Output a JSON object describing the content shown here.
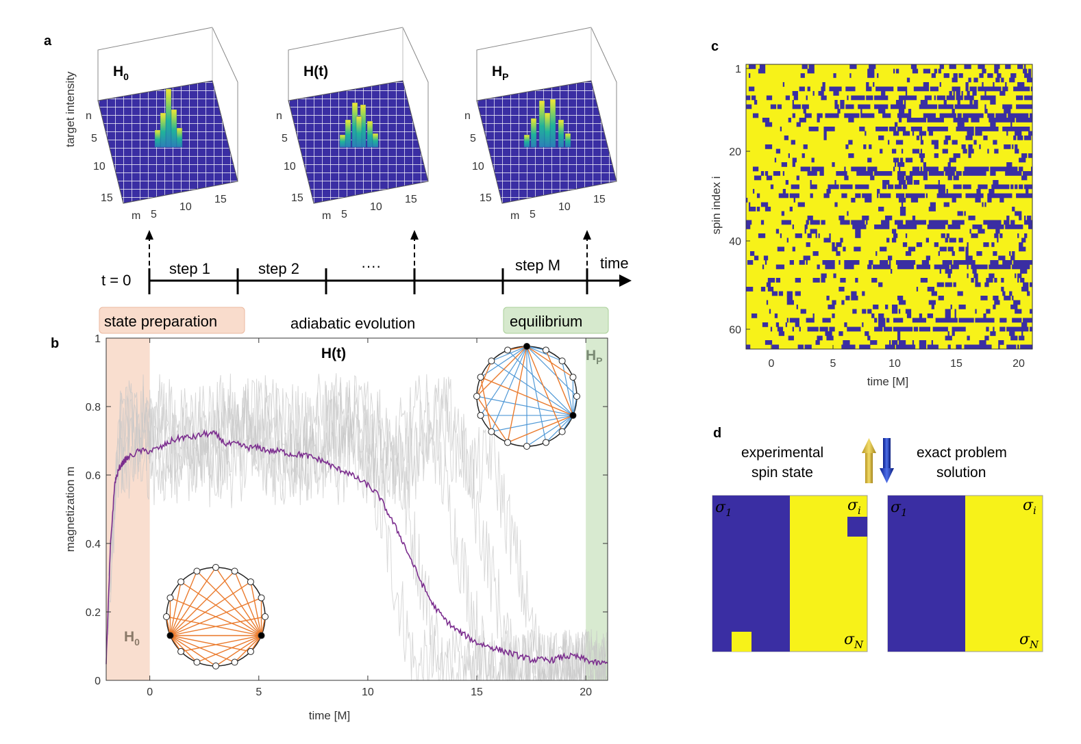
{
  "panels": {
    "a": {
      "letter": "a",
      "zlabel": "target intensity",
      "x_label": "m",
      "y_label": "n",
      "subplots": [
        {
          "title_main": "H",
          "title_sub": "0",
          "x_ticks": [
            "5",
            "10",
            "15"
          ],
          "y_ticks": [
            "5",
            "10",
            "15"
          ],
          "peaks": 1
        },
        {
          "title_main": "H(t)",
          "title_sub": "",
          "x_ticks": [
            "5",
            "10",
            "15"
          ],
          "y_ticks": [
            "5",
            "10",
            "15"
          ],
          "peaks": 2
        },
        {
          "title_main": "H",
          "title_sub": "P",
          "x_ticks": [
            "5",
            "10",
            "15"
          ],
          "y_ticks": [
            "5",
            "10",
            "15"
          ],
          "peaks": 3
        }
      ],
      "timeline": {
        "start_label": "t = 0",
        "steps": [
          "step 1",
          "step 2",
          "····",
          "",
          "step M"
        ],
        "end_label": "time"
      },
      "phases": {
        "preparation": "state preparation",
        "evolution": "adiabatic evolution",
        "equilibrium": "equilibrium"
      },
      "colors": {
        "preparation": "#f9dccc",
        "equilibrium": "#d6e9cd"
      }
    },
    "b": {
      "letter": "b",
      "title": "H(t)",
      "label_h0_main": "H",
      "label_h0_sub": "0",
      "label_hp_main": "H",
      "label_hp_sub": "P"
    },
    "c": {
      "letter": "c",
      "xlabel": "time [M]",
      "ylabel": "spin index i",
      "x_ticks": [
        "0",
        "5",
        "10",
        "15",
        "20"
      ],
      "y_ticks": [
        "1",
        "20",
        "40",
        "60"
      ],
      "colors": {
        "up": "#f7f219",
        "down": "#3a2ea3"
      }
    },
    "d": {
      "letter": "d",
      "left_caption_1": "experimental",
      "left_caption_2": "spin state",
      "right_caption_1": "exact problem",
      "right_caption_2": "solution",
      "sigma_1": "σ",
      "sigma_1_sub": "1",
      "sigma_i": "σ",
      "sigma_i_sub": "i",
      "sigma_n": "σ",
      "sigma_n_sub": "N"
    }
  },
  "chart_data": {
    "type": "line",
    "title": "H(t)",
    "xlabel": "time [M]",
    "ylabel": "magnetization m",
    "xlim": [
      -2,
      21
    ],
    "ylim": [
      0,
      1
    ],
    "x_ticks": [
      0,
      5,
      10,
      15,
      20
    ],
    "y_ticks": [
      0,
      0.2,
      0.4,
      0.6,
      0.8,
      1
    ],
    "grid": false,
    "series": [
      {
        "color": "#7b2d8e",
        "x": [
          -2,
          -1.8,
          -1.6,
          -1.4,
          -1.2,
          -1,
          -0.5,
          0,
          0.5,
          1,
          1.5,
          2,
          2.5,
          3,
          3.5,
          4,
          4.5,
          5,
          5.5,
          6,
          6.5,
          7,
          7.5,
          8,
          8.5,
          9,
          9.5,
          10,
          10.5,
          11,
          11.5,
          12,
          12.5,
          13,
          13.5,
          14,
          14.5,
          15,
          15.5,
          16,
          16.5,
          17,
          17.5,
          18,
          18.5,
          19,
          19.5,
          20,
          20.5,
          21
        ],
        "y": [
          0.05,
          0.4,
          0.58,
          0.62,
          0.64,
          0.65,
          0.67,
          0.67,
          0.68,
          0.7,
          0.71,
          0.71,
          0.72,
          0.72,
          0.69,
          0.69,
          0.68,
          0.68,
          0.67,
          0.67,
          0.66,
          0.66,
          0.65,
          0.64,
          0.62,
          0.61,
          0.59,
          0.57,
          0.54,
          0.48,
          0.42,
          0.35,
          0.28,
          0.22,
          0.18,
          0.15,
          0.13,
          0.11,
          0.1,
          0.09,
          0.08,
          0.07,
          0.06,
          0.06,
          0.06,
          0.07,
          0.07,
          0.06,
          0.05,
          0.05
        ]
      }
    ],
    "shaded": [
      {
        "from": -2,
        "to": 0,
        "color": "#f9dccc"
      },
      {
        "from": 20,
        "to": 21,
        "color": "#d6e9cd"
      }
    ]
  }
}
